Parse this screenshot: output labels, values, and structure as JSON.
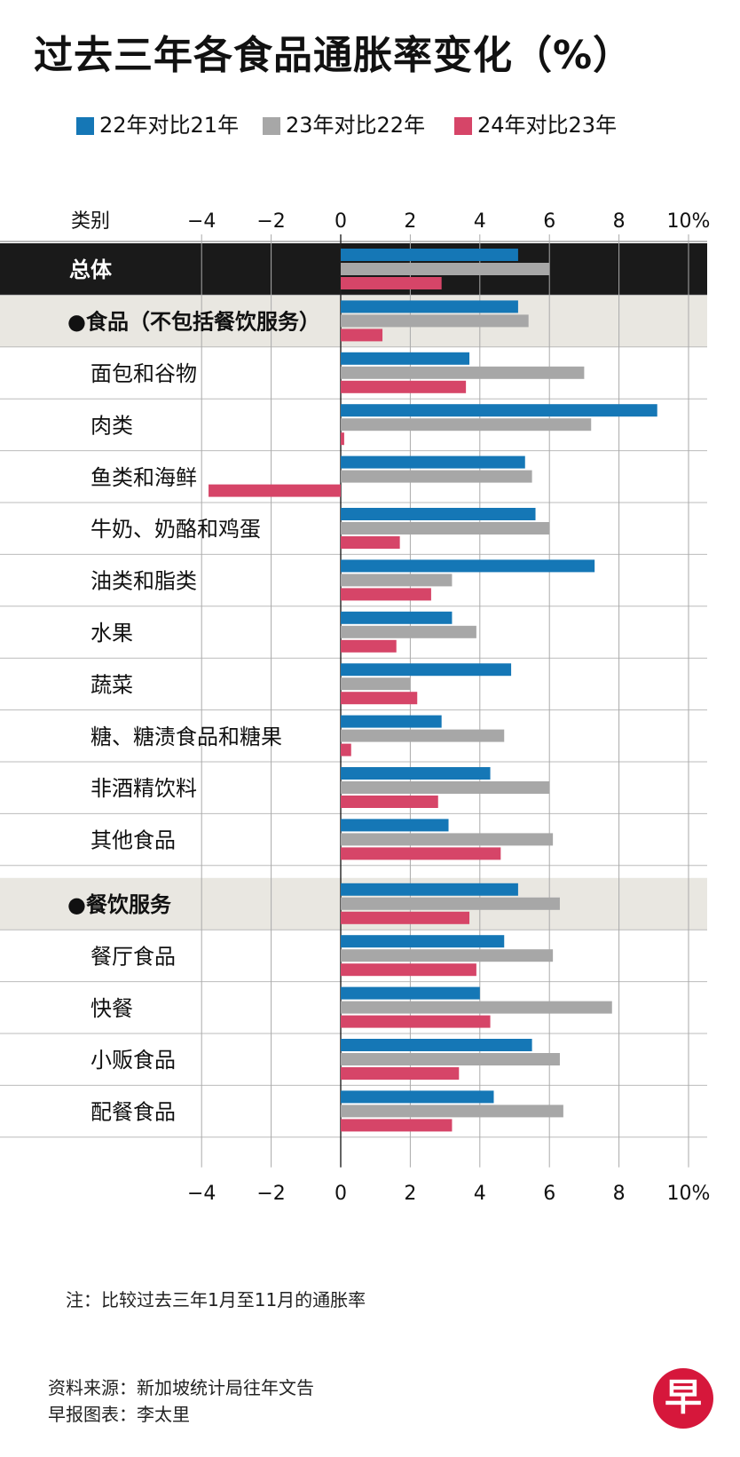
{
  "title": "过去三年各食品通胀率变化（%）",
  "legend": [
    {
      "label": "22年对比21年",
      "color": "#1577b6"
    },
    {
      "label": "23年对比22年",
      "color": "#a7a7a7"
    },
    {
      "label": "24年对比23年",
      "color": "#d64568"
    }
  ],
  "chart_data": {
    "type": "bar",
    "orientation": "horizontal",
    "category_header": "类别",
    "xlim": [
      -4,
      10
    ],
    "ticks": [
      "−4",
      "−2",
      "0",
      "2",
      "4",
      "6",
      "8",
      "10%"
    ],
    "grid": true,
    "series": [
      {
        "name": "22年对比21年",
        "color": "#1577b6"
      },
      {
        "name": "23年对比22年",
        "color": "#a7a7a7"
      },
      {
        "name": "24年对比23年",
        "color": "#d64568"
      }
    ],
    "rows": [
      {
        "label": "总体",
        "style": "total",
        "values": [
          5.1,
          6.0,
          2.9
        ]
      },
      {
        "label": "●食品（不包括餐饮服务）",
        "style": "section",
        "values": [
          5.1,
          5.4,
          1.2
        ]
      },
      {
        "label": "面包和谷物",
        "style": "item",
        "values": [
          3.7,
          7.0,
          3.6
        ]
      },
      {
        "label": "肉类",
        "style": "item",
        "values": [
          9.1,
          7.2,
          0.1
        ]
      },
      {
        "label": "鱼类和海鲜",
        "style": "item",
        "values": [
          5.3,
          5.5,
          -3.8
        ]
      },
      {
        "label": "牛奶、奶酪和鸡蛋",
        "style": "item",
        "values": [
          5.6,
          6.0,
          1.7
        ]
      },
      {
        "label": "油类和脂类",
        "style": "item",
        "values": [
          7.3,
          3.2,
          2.6
        ]
      },
      {
        "label": "水果",
        "style": "item",
        "values": [
          3.2,
          3.9,
          1.6
        ]
      },
      {
        "label": "蔬菜",
        "style": "item",
        "values": [
          4.9,
          2.0,
          2.2
        ]
      },
      {
        "label": "糖、糖渍食品和糖果",
        "style": "item",
        "values": [
          2.9,
          4.7,
          0.3
        ]
      },
      {
        "label": "非酒精饮料",
        "style": "item",
        "values": [
          4.3,
          6.0,
          2.8
        ]
      },
      {
        "label": "其他食品",
        "style": "item",
        "values": [
          3.1,
          6.1,
          4.6
        ]
      },
      {
        "label": "●餐饮服务",
        "style": "section",
        "values": [
          5.1,
          6.3,
          3.7
        ]
      },
      {
        "label": "餐厅食品",
        "style": "item",
        "values": [
          4.7,
          6.1,
          3.9
        ]
      },
      {
        "label": "快餐",
        "style": "item",
        "values": [
          4.0,
          7.8,
          4.3
        ]
      },
      {
        "label": "小贩食品",
        "style": "item",
        "values": [
          5.5,
          6.3,
          3.4
        ]
      },
      {
        "label": "配餐食品",
        "style": "item",
        "values": [
          4.4,
          6.4,
          3.2
        ]
      }
    ]
  },
  "note": "注：比较过去三年1月至11月的通胀率",
  "source": "资料来源：新加坡统计局往年文告",
  "credit": "早报图表：李太里",
  "logo_text": "早"
}
